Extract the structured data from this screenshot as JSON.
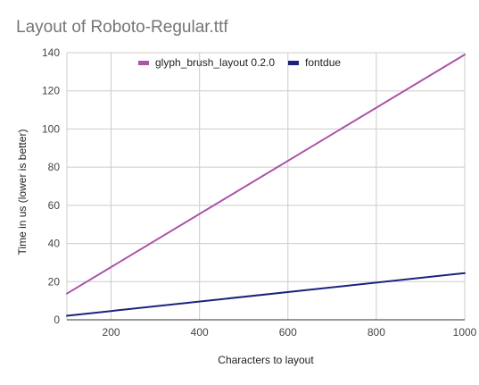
{
  "chart_data": {
    "type": "line",
    "title": "Layout of Roboto-Regular.ttf",
    "xlabel": "Characters to layout",
    "ylabel": "Time in us (lower is better)",
    "xlim": [
      100,
      1000
    ],
    "ylim": [
      0,
      140
    ],
    "x_ticks": [
      200,
      400,
      600,
      800,
      1000
    ],
    "y_ticks": [
      0,
      20,
      40,
      60,
      80,
      100,
      120,
      140
    ],
    "grid": true,
    "legend_position": "top",
    "series": [
      {
        "name": "glyph_brush_layout 0.2.0",
        "color": "#aa55aa",
        "x": [
          100,
          1000
        ],
        "values": [
          13.7,
          139
        ]
      },
      {
        "name": "fontdue",
        "color": "#1a237e",
        "x": [
          100,
          1000
        ],
        "values": [
          2.1,
          24.5
        ]
      }
    ]
  }
}
